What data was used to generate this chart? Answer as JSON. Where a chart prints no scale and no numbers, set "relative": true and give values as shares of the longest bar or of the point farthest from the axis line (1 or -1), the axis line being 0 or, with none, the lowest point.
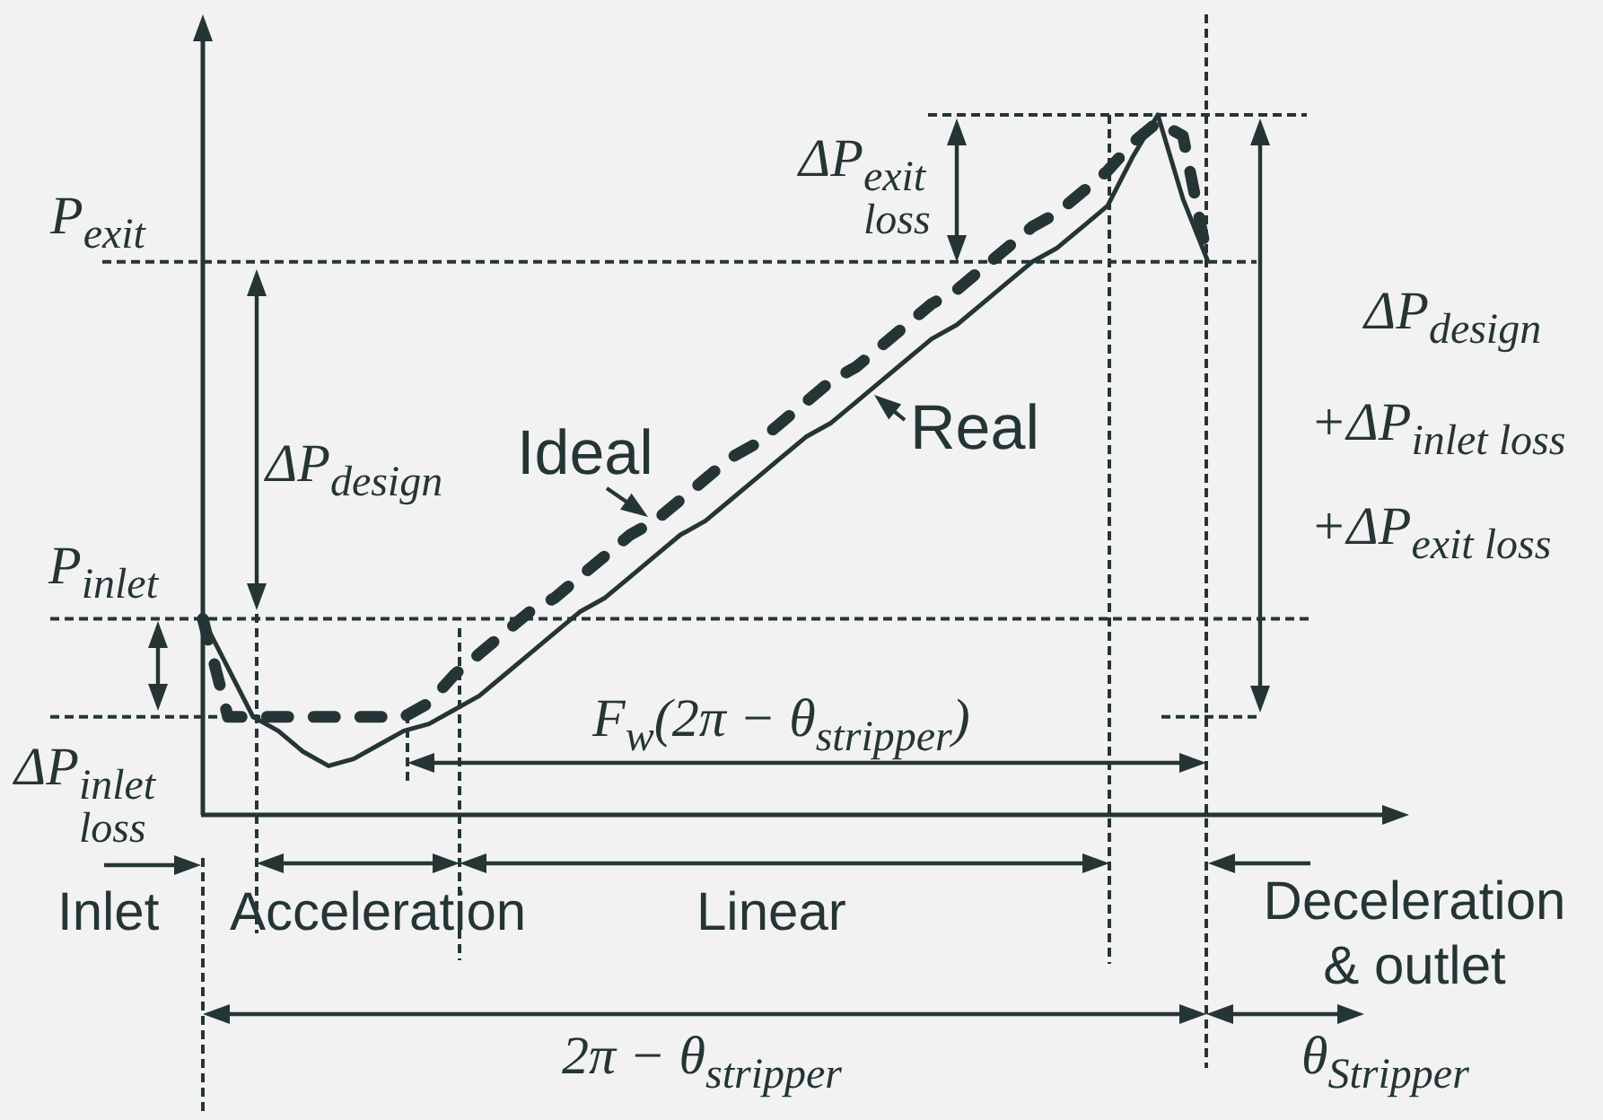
{
  "chart_data": {
    "type": "line",
    "relative": true,
    "categories": [
      null,
      null,
      null,
      null,
      null,
      null,
      null,
      null,
      null,
      null,
      null,
      null,
      null,
      null,
      null,
      null,
      null,
      null,
      null,
      null,
      null,
      null,
      null,
      null,
      null,
      null,
      null,
      null,
      null,
      null,
      null,
      null,
      null,
      null,
      null,
      null,
      null,
      null,
      null,
      null,
      null,
      null,
      null,
      null,
      null,
      null,
      null,
      null
    ],
    "series": [
      {
        "name": "Real",
        "color": "#253535",
        "line_style": "solid",
        "values": [
          0.28,
          0.21,
          0.14,
          0.12,
          0.09,
          0.07,
          0.08,
          0.1,
          0.12,
          0.13,
          0.15,
          0.17,
          0.2,
          0.23,
          0.26,
          0.29,
          0.31,
          0.34,
          0.37,
          0.4,
          0.42,
          0.45,
          0.48,
          0.51,
          0.54,
          0.56,
          0.59,
          0.62,
          0.65,
          0.68,
          0.7,
          0.73,
          0.76,
          0.79,
          0.81,
          0.84,
          0.87,
          0.94,
          1,
          0.88,
          0.79,
          null,
          null,
          null,
          null,
          null,
          null,
          null
        ]
      },
      {
        "name": "Ideal",
        "color": "#253535",
        "line_style": "dashed",
        "values": [
          0.28,
          0.14,
          0.14,
          0.14,
          0.14,
          0.14,
          0.14,
          0.14,
          0.14,
          0.16,
          0.2,
          0.23,
          0.26,
          0.29,
          0.31,
          0.34,
          0.37,
          0.4,
          0.42,
          0.45,
          0.48,
          0.51,
          0.53,
          0.56,
          0.59,
          0.62,
          0.64,
          0.67,
          0.7,
          0.73,
          0.75,
          0.78,
          0.81,
          0.84,
          0.86,
          0.89,
          0.92,
          0.96,
          0.99,
          0.97,
          0.79,
          null,
          null,
          null,
          null,
          null,
          null,
          null
        ]
      }
    ],
    "ref_lines": [
      {
        "axis": "y",
        "value": 1,
        "color": "#253535",
        "line_style": "dashed"
      },
      {
        "axis": "y",
        "value": 0.79,
        "label": "P$_{exit}$",
        "color": "#253535",
        "line_style": "dashed"
      },
      {
        "axis": "y",
        "value": 0.28,
        "label": "P$_{inlet}$",
        "color": "#253535",
        "line_style": "dashed"
      },
      {
        "axis": "y",
        "value": 0.14,
        "color": "#253535",
        "line_style": "dashed"
      }
    ],
    "annotations": [
      "ΔP$_{design}$",
      "ΔP$_{inlet loss}$",
      "ΔP$_{exit loss}$",
      "ΔP$_{design}$",
      "+ΔP$_{inlet loss}$",
      "+ΔP$_{exit loss}$",
      "F$_{w}$(2π − θ$_{stripper}$)",
      "Inlet",
      "Acceleration",
      "Linear",
      "Deceleration & outlet",
      "2π − θ$_{stripper}$",
      "θ$_{Stripper}$"
    ]
  }
}
